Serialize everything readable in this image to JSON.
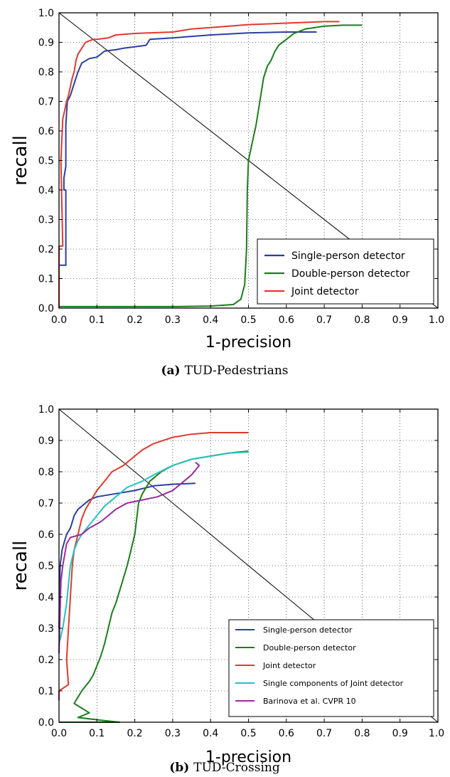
{
  "chart_data": [
    {
      "type": "line",
      "caption_letter": "(a)",
      "caption_text": "TUD-Pedestrians",
      "xlabel": "1-precision",
      "ylabel": "recall",
      "xlim": [
        0.0,
        1.0
      ],
      "ylim": [
        0.0,
        1.0
      ],
      "xticks": [
        "0.0",
        "0.1",
        "0.2",
        "0.3",
        "0.4",
        "0.5",
        "0.6",
        "0.7",
        "0.8",
        "0.9",
        "1.0"
      ],
      "yticks": [
        "0.0",
        "0.1",
        "0.2",
        "0.3",
        "0.4",
        "0.5",
        "0.6",
        "0.7",
        "0.8",
        "0.9",
        "1.0"
      ],
      "grid": true,
      "legend_position": "lower-right",
      "reference_line": [
        [
          0.0,
          1.0
        ],
        [
          1.0,
          0.0
        ]
      ],
      "series": [
        {
          "name": "Single-person detector",
          "color": "#2b3f9e",
          "points": [
            [
              0.0,
              0.145
            ],
            [
              0.018,
              0.145
            ],
            [
              0.018,
              0.4
            ],
            [
              0.013,
              0.4
            ],
            [
              0.013,
              0.44
            ],
            [
              0.018,
              0.48
            ],
            [
              0.018,
              0.62
            ],
            [
              0.022,
              0.7
            ],
            [
              0.03,
              0.72
            ],
            [
              0.04,
              0.76
            ],
            [
              0.05,
              0.8
            ],
            [
              0.06,
              0.83
            ],
            [
              0.08,
              0.845
            ],
            [
              0.1,
              0.85
            ],
            [
              0.12,
              0.87
            ],
            [
              0.15,
              0.875
            ],
            [
              0.17,
              0.88
            ],
            [
              0.2,
              0.885
            ],
            [
              0.23,
              0.89
            ],
            [
              0.24,
              0.91
            ],
            [
              0.3,
              0.915
            ],
            [
              0.4,
              0.925
            ],
            [
              0.5,
              0.932
            ],
            [
              0.6,
              0.935
            ],
            [
              0.68,
              0.935
            ]
          ]
        },
        {
          "name": "Double-person detector",
          "color": "#1a7f1a",
          "points": [
            [
              0.0,
              0.005
            ],
            [
              0.3,
              0.005
            ],
            [
              0.4,
              0.007
            ],
            [
              0.46,
              0.012
            ],
            [
              0.48,
              0.03
            ],
            [
              0.49,
              0.08
            ],
            [
              0.495,
              0.2
            ],
            [
              0.497,
              0.4
            ],
            [
              0.5,
              0.5
            ],
            [
              0.51,
              0.56
            ],
            [
              0.52,
              0.62
            ],
            [
              0.53,
              0.7
            ],
            [
              0.54,
              0.78
            ],
            [
              0.55,
              0.82
            ],
            [
              0.56,
              0.84
            ],
            [
              0.57,
              0.87
            ],
            [
              0.58,
              0.89
            ],
            [
              0.6,
              0.91
            ],
            [
              0.62,
              0.93
            ],
            [
              0.65,
              0.945
            ],
            [
              0.7,
              0.955
            ],
            [
              0.75,
              0.958
            ],
            [
              0.8,
              0.958
            ]
          ]
        },
        {
          "name": "Joint detector",
          "color": "#e03a2e",
          "points": [
            [
              0.0,
              0.0
            ],
            [
              0.0,
              0.21
            ],
            [
              0.01,
              0.21
            ],
            [
              0.005,
              0.5
            ],
            [
              0.01,
              0.64
            ],
            [
              0.02,
              0.7
            ],
            [
              0.025,
              0.72
            ],
            [
              0.03,
              0.75
            ],
            [
              0.035,
              0.78
            ],
            [
              0.04,
              0.8
            ],
            [
              0.045,
              0.84
            ],
            [
              0.05,
              0.86
            ],
            [
              0.06,
              0.88
            ],
            [
              0.07,
              0.9
            ],
            [
              0.09,
              0.91
            ],
            [
              0.1,
              0.91
            ],
            [
              0.13,
              0.915
            ],
            [
              0.15,
              0.925
            ],
            [
              0.2,
              0.93
            ],
            [
              0.3,
              0.935
            ],
            [
              0.35,
              0.945
            ],
            [
              0.4,
              0.95
            ],
            [
              0.5,
              0.96
            ],
            [
              0.6,
              0.965
            ],
            [
              0.7,
              0.97
            ],
            [
              0.74,
              0.97
            ]
          ]
        }
      ]
    },
    {
      "type": "line",
      "caption_letter": "(b)",
      "caption_text": "TUD-Crossing",
      "xlabel": "1-precision",
      "ylabel": "recall",
      "xlim": [
        0.0,
        1.0
      ],
      "ylim": [
        0.0,
        1.0
      ],
      "xticks": [
        "0.0",
        "0.1",
        "0.2",
        "0.3",
        "0.4",
        "0.5",
        "0.6",
        "0.7",
        "0.8",
        "0.9",
        "1.0"
      ],
      "yticks": [
        "0.0",
        "0.1",
        "0.2",
        "0.3",
        "0.4",
        "0.5",
        "0.6",
        "0.7",
        "0.8",
        "0.9",
        "1.0"
      ],
      "grid": true,
      "legend_position": "lower-right",
      "reference_line": [
        [
          0.0,
          1.0
        ],
        [
          1.0,
          0.0
        ]
      ],
      "series": [
        {
          "name": "Single-person detector",
          "color": "#2b3f9e",
          "points": [
            [
              0.0,
              0.3
            ],
            [
              0.003,
              0.5
            ],
            [
              0.008,
              0.55
            ],
            [
              0.015,
              0.58
            ],
            [
              0.02,
              0.6
            ],
            [
              0.03,
              0.62
            ],
            [
              0.035,
              0.64
            ],
            [
              0.04,
              0.66
            ],
            [
              0.05,
              0.68
            ],
            [
              0.06,
              0.69
            ],
            [
              0.07,
              0.7
            ],
            [
              0.08,
              0.71
            ],
            [
              0.1,
              0.72
            ],
            [
              0.15,
              0.73
            ],
            [
              0.2,
              0.74
            ],
            [
              0.25,
              0.755
            ],
            [
              0.3,
              0.76
            ],
            [
              0.36,
              0.763
            ]
          ]
        },
        {
          "name": "Double-person detector",
          "color": "#1a7f1a",
          "points": [
            [
              0.0,
              0.0
            ],
            [
              0.16,
              0.0
            ],
            [
              0.12,
              0.005
            ],
            [
              0.05,
              0.015
            ],
            [
              0.08,
              0.03
            ],
            [
              0.04,
              0.06
            ],
            [
              0.05,
              0.08
            ],
            [
              0.06,
              0.1
            ],
            [
              0.08,
              0.13
            ],
            [
              0.09,
              0.15
            ],
            [
              0.1,
              0.18
            ],
            [
              0.11,
              0.21
            ],
            [
              0.12,
              0.25
            ],
            [
              0.13,
              0.3
            ],
            [
              0.14,
              0.35
            ],
            [
              0.15,
              0.38
            ],
            [
              0.16,
              0.42
            ],
            [
              0.17,
              0.46
            ],
            [
              0.18,
              0.5
            ],
            [
              0.19,
              0.55
            ],
            [
              0.2,
              0.6
            ],
            [
              0.205,
              0.65
            ],
            [
              0.21,
              0.7
            ],
            [
              0.22,
              0.73
            ],
            [
              0.24,
              0.77
            ],
            [
              0.27,
              0.8
            ],
            [
              0.3,
              0.82
            ],
            [
              0.35,
              0.84
            ],
            [
              0.4,
              0.85
            ],
            [
              0.45,
              0.86
            ],
            [
              0.5,
              0.866
            ]
          ]
        },
        {
          "name": "Joint detector",
          "color": "#e03a2e",
          "points": [
            [
              0.0,
              0.07
            ],
            [
              0.0,
              0.1
            ],
            [
              0.025,
              0.12
            ],
            [
              0.02,
              0.2
            ],
            [
              0.025,
              0.3
            ],
            [
              0.03,
              0.4
            ],
            [
              0.035,
              0.5
            ],
            [
              0.04,
              0.55
            ],
            [
              0.05,
              0.6
            ],
            [
              0.06,
              0.65
            ],
            [
              0.07,
              0.68
            ],
            [
              0.08,
              0.7
            ],
            [
              0.1,
              0.74
            ],
            [
              0.12,
              0.77
            ],
            [
              0.14,
              0.8
            ],
            [
              0.17,
              0.82
            ],
            [
              0.2,
              0.85
            ],
            [
              0.22,
              0.87
            ],
            [
              0.25,
              0.89
            ],
            [
              0.3,
              0.91
            ],
            [
              0.35,
              0.92
            ],
            [
              0.4,
              0.925
            ],
            [
              0.45,
              0.925
            ],
            [
              0.5,
              0.925
            ]
          ]
        },
        {
          "name": "Single components of Joint detector",
          "color": "#23c2c2",
          "points": [
            [
              0.0,
              0.25
            ],
            [
              0.01,
              0.3
            ],
            [
              0.02,
              0.38
            ],
            [
              0.025,
              0.44
            ],
            [
              0.03,
              0.5
            ],
            [
              0.04,
              0.55
            ],
            [
              0.05,
              0.58
            ],
            [
              0.06,
              0.6
            ],
            [
              0.08,
              0.63
            ],
            [
              0.1,
              0.66
            ],
            [
              0.12,
              0.69
            ],
            [
              0.15,
              0.72
            ],
            [
              0.18,
              0.75
            ],
            [
              0.22,
              0.77
            ],
            [
              0.25,
              0.79
            ],
            [
              0.3,
              0.82
            ],
            [
              0.35,
              0.84
            ],
            [
              0.4,
              0.85
            ],
            [
              0.45,
              0.86
            ],
            [
              0.5,
              0.863
            ]
          ]
        },
        {
          "name": "Barinova et al. CVPR 10",
          "color": "#9b2aa0",
          "points": [
            [
              0.0,
              0.22
            ],
            [
              0.005,
              0.45
            ],
            [
              0.01,
              0.5
            ],
            [
              0.02,
              0.57
            ],
            [
              0.03,
              0.59
            ],
            [
              0.06,
              0.6
            ],
            [
              0.08,
              0.62
            ],
            [
              0.11,
              0.64
            ],
            [
              0.13,
              0.66
            ],
            [
              0.15,
              0.68
            ],
            [
              0.18,
              0.7
            ],
            [
              0.22,
              0.71
            ],
            [
              0.26,
              0.72
            ],
            [
              0.3,
              0.74
            ],
            [
              0.33,
              0.77
            ],
            [
              0.35,
              0.79
            ],
            [
              0.37,
              0.82
            ],
            [
              0.36,
              0.83
            ]
          ]
        }
      ]
    }
  ]
}
